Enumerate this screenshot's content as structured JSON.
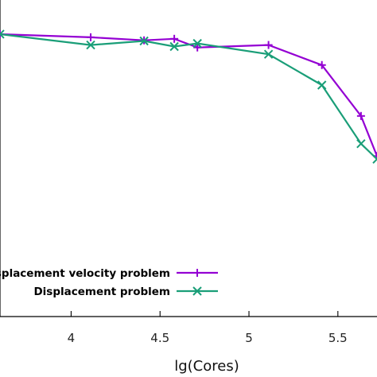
{
  "chart_data": {
    "type": "line",
    "title": "",
    "xlabel": "lg(Cores)",
    "ylabel": "",
    "xlim": [
      3.6,
      5.72
    ],
    "ylim": [
      0,
      1.0
    ],
    "x_ticks": [
      4,
      4.5,
      5,
      5.5
    ],
    "x_tick_labels": [
      "4",
      "4.5",
      "5",
      "5.5"
    ],
    "grid": false,
    "legend_position": "bottom-left",
    "series": [
      {
        "name": "Displacement velocity problem",
        "color": "#9400d3",
        "marker": "plus",
        "x": [
          3.6,
          4.11,
          4.41,
          4.58,
          4.71,
          5.11,
          5.41,
          5.63,
          5.72
        ],
        "y": [
          0.915,
          0.905,
          0.895,
          0.9,
          0.872,
          0.88,
          0.815,
          0.65,
          0.52
        ]
      },
      {
        "name": "Displacement problem",
        "color": "#1a9e78",
        "marker": "x",
        "x": [
          3.6,
          4.11,
          4.41,
          4.58,
          4.71,
          5.11,
          5.41,
          5.63,
          5.72
        ],
        "y": [
          0.915,
          0.88,
          0.893,
          0.875,
          0.885,
          0.85,
          0.75,
          0.56,
          0.51
        ]
      }
    ]
  }
}
